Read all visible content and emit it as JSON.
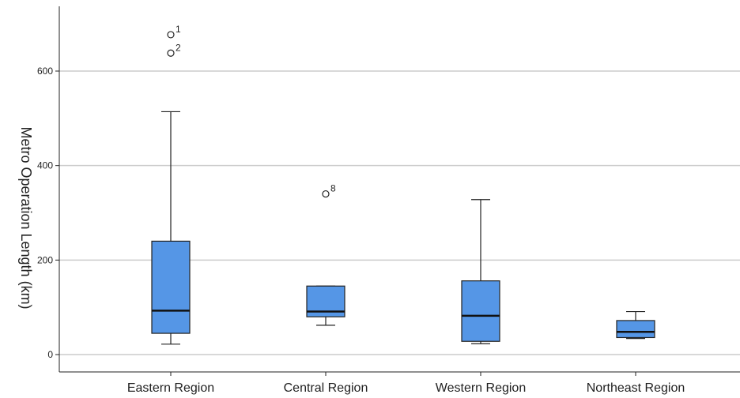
{
  "chart_data": {
    "type": "boxplot",
    "title": "",
    "xlabel": "",
    "ylabel": "Metro Operation Length (km)",
    "ylim": [
      -35,
      740
    ],
    "yticks": [
      0,
      200,
      400,
      600
    ],
    "grid": "horizontal",
    "colors": {
      "box": "#5596e6",
      "line": "#222222",
      "grid": "#cccccc"
    },
    "categories": [
      "Eastern Region",
      "Central Region",
      "Western Region",
      "Northeast Region"
    ],
    "boxes": [
      {
        "category": "Eastern Region",
        "whisker_low": 22,
        "q1": 45,
        "median": 93,
        "q3": 240,
        "whisker_high": 514,
        "outliers": [
          {
            "value": 677,
            "label": "1"
          },
          {
            "value": 638,
            "label": "2"
          }
        ]
      },
      {
        "category": "Central Region",
        "whisker_low": 62,
        "q1": 80,
        "median": 91,
        "q3": 145,
        "whisker_high": 145,
        "outliers": [
          {
            "value": 340,
            "label": "8"
          }
        ]
      },
      {
        "category": "Western Region",
        "whisker_low": 23,
        "q1": 28,
        "median": 82,
        "q3": 156,
        "whisker_high": 328,
        "outliers": []
      },
      {
        "category": "Northeast Region",
        "whisker_low": 34,
        "q1": 36,
        "median": 48,
        "q3": 72,
        "whisker_high": 91,
        "outliers": []
      }
    ]
  }
}
